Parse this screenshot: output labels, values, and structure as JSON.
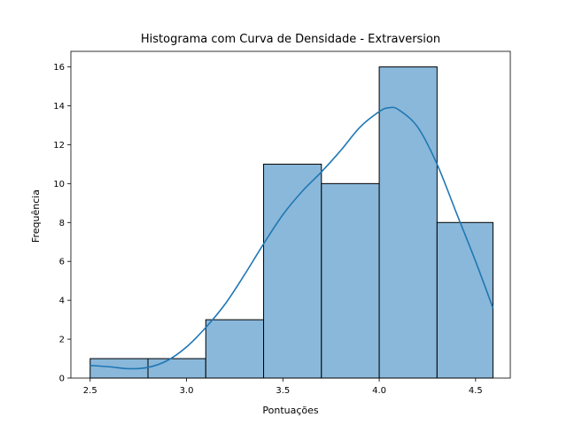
{
  "chart_data": {
    "type": "bar",
    "title": "Histograma com Curva de Densidade - Extraversion",
    "xlabel": "Pontuações",
    "ylabel": "Frequência",
    "xlim": [
      2.4,
      4.68
    ],
    "ylim": [
      0,
      16.8
    ],
    "xticks": [
      {
        "value": 2.5,
        "label": "2.5"
      },
      {
        "value": 3.0,
        "label": "3.0"
      },
      {
        "value": 3.5,
        "label": "3.5"
      },
      {
        "value": 4.0,
        "label": "4.0"
      },
      {
        "value": 4.5,
        "label": "4.5"
      }
    ],
    "yticks": [
      {
        "value": 0,
        "label": "0"
      },
      {
        "value": 2,
        "label": "2"
      },
      {
        "value": 4,
        "label": "4"
      },
      {
        "value": 6,
        "label": "6"
      },
      {
        "value": 8,
        "label": "8"
      },
      {
        "value": 10,
        "label": "10"
      },
      {
        "value": 12,
        "label": "12"
      },
      {
        "value": 14,
        "label": "14"
      },
      {
        "value": 16,
        "label": "16"
      }
    ],
    "bins": [
      {
        "x0": 2.5,
        "x1": 2.8,
        "count": 1
      },
      {
        "x0": 2.8,
        "x1": 3.1,
        "count": 1
      },
      {
        "x0": 3.1,
        "x1": 3.4,
        "count": 3
      },
      {
        "x0": 3.4,
        "x1": 3.7,
        "count": 11
      },
      {
        "x0": 3.7,
        "x1": 4.0,
        "count": 10
      },
      {
        "x0": 4.0,
        "x1": 4.3,
        "count": 16
      },
      {
        "x0": 4.3,
        "x1": 4.59,
        "count": 8
      }
    ],
    "kde": {
      "x": [
        2.5,
        2.6,
        2.7,
        2.8,
        2.9,
        3.0,
        3.1,
        3.2,
        3.3,
        3.4,
        3.5,
        3.6,
        3.7,
        3.8,
        3.9,
        4.0,
        4.05,
        4.1,
        4.2,
        4.3,
        4.4,
        4.5,
        4.59
      ],
      "y": [
        0.65,
        0.58,
        0.48,
        0.55,
        0.9,
        1.6,
        2.6,
        3.8,
        5.3,
        6.9,
        8.4,
        9.6,
        10.6,
        11.7,
        12.9,
        13.7,
        13.9,
        13.8,
        12.9,
        11.0,
        8.5,
        6.0,
        3.6
      ]
    },
    "bar_color": "#8ab8da",
    "bar_edge_color": "#000000",
    "kde_color": "#1f77b4",
    "grid": false,
    "legend": "none"
  }
}
